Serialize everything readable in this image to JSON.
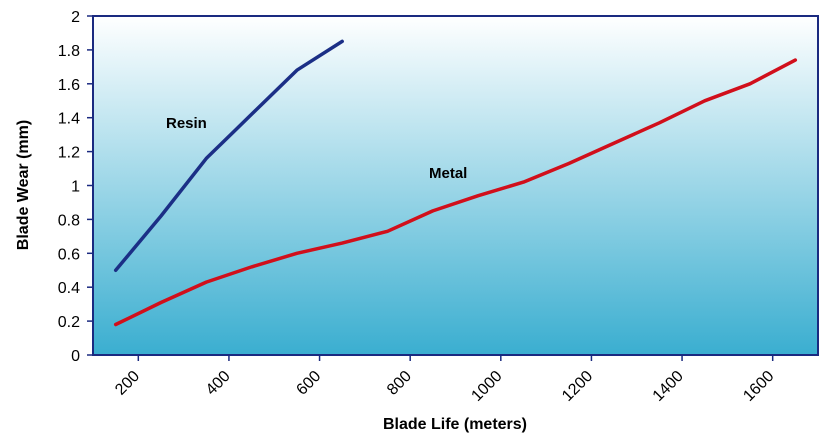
{
  "chart_data": {
    "type": "line",
    "title": "",
    "xlabel": "Blade Life (meters)",
    "ylabel": "Blade Wear (mm)",
    "xlim": [
      100,
      1700
    ],
    "ylim": [
      0,
      2
    ],
    "x_ticks": [
      200,
      400,
      600,
      800,
      1000,
      1200,
      1400,
      1600
    ],
    "y_ticks": [
      0,
      0.2,
      0.4,
      0.6,
      0.8,
      1,
      1.2,
      1.4,
      1.6,
      1.8,
      2
    ],
    "grid": false,
    "colors": {
      "plot_top": "#ffffff",
      "plot_bottom": "#3aaed0",
      "frame": "#1a2a80"
    },
    "series": [
      {
        "name": "Resin",
        "color": "#1b2f86",
        "x": [
          150,
          250,
          350,
          450,
          550,
          650
        ],
        "y": [
          0.5,
          0.82,
          1.16,
          1.42,
          1.68,
          1.85
        ]
      },
      {
        "name": "Metal",
        "color": "#d10f1b",
        "x": [
          150,
          250,
          350,
          450,
          550,
          650,
          750,
          850,
          950,
          1050,
          1150,
          1250,
          1350,
          1450,
          1550,
          1650
        ],
        "y": [
          0.18,
          0.31,
          0.43,
          0.52,
          0.6,
          0.66,
          0.73,
          0.85,
          0.94,
          1.02,
          1.13,
          1.25,
          1.37,
          1.5,
          1.6,
          1.74
        ]
      }
    ]
  }
}
